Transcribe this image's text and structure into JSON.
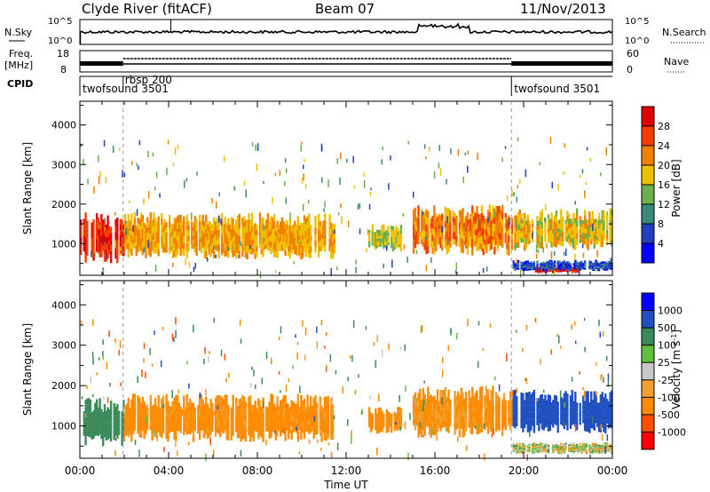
{
  "header": {
    "station": "Clyde River (fitACF)",
    "beam": "Beam 07",
    "date": "11/Nov/2013"
  },
  "top_panels": {
    "nsky_label": "N.Sky",
    "nsky_ticks": [
      "10^5",
      "10^0"
    ],
    "nsearch_label": "N.Search",
    "nsearch_ticks": [
      "10^5",
      "10^0"
    ],
    "freq_label_1": "Freq.",
    "freq_label_2": "[MHz]",
    "freq_ticks": [
      "18",
      "8"
    ],
    "nave_label": "Nave",
    "nave_ticks": [
      "60",
      "0"
    ],
    "cpid_label": "CPID",
    "cpid_segments": [
      {
        "name": "twofsound 3501",
        "start_h": 0,
        "end_h": 1.95
      },
      {
        "name": "rbsp 200",
        "start_h": 1.95,
        "end_h": 19.45
      },
      {
        "name": "twofsound 3501",
        "start_h": 19.45,
        "end_h": 24
      }
    ]
  },
  "x_axis": {
    "label": "Time UT",
    "ticks": [
      "00:00",
      "04:00",
      "08:00",
      "12:00",
      "16:00",
      "20:00",
      "00:00"
    ]
  },
  "chart_data": [
    {
      "type": "heatmap",
      "quantity": "Power",
      "ylabel": "Slant Range [km]",
      "yticks": [
        1000,
        2000,
        3000,
        4000
      ],
      "ylim": [
        200,
        4600
      ],
      "xlim_hours": [
        0,
        24
      ],
      "colorbar_label": "Power [dB]",
      "colorbar_ticks": [
        "28",
        "24",
        "20",
        "16",
        "12",
        "8",
        "4"
      ],
      "colorbar_colors": [
        "#0000ff",
        "#2040c0",
        "#3a8a7a",
        "#6ab04c",
        "#f0c000",
        "#f08000",
        "#f04000",
        "#e00000"
      ],
      "features": [
        {
          "t0": 0,
          "t1": 2,
          "r0": 500,
          "r1": 1800,
          "level": 28
        },
        {
          "t0": 2,
          "t1": 11.5,
          "r0": 600,
          "r1": 1800,
          "level": 20
        },
        {
          "t0": 13,
          "t1": 14.5,
          "r0": 800,
          "r1": 1500,
          "level": 16
        },
        {
          "t0": 15,
          "t1": 19.5,
          "r0": 700,
          "r1": 2000,
          "level": 22
        },
        {
          "t0": 19.5,
          "t1": 24,
          "r0": 800,
          "r1": 1900,
          "level": 18
        },
        {
          "t0": 20.5,
          "t1": 22.5,
          "r0": 250,
          "r1": 450,
          "level": 30
        },
        {
          "t0": 19.5,
          "t1": 24,
          "r0": 300,
          "r1": 600,
          "level": 6
        }
      ]
    },
    {
      "type": "heatmap",
      "quantity": "Velocity",
      "ylabel": "Slant Range [km]",
      "yticks": [
        1000,
        2000,
        3000,
        4000
      ],
      "ylim": [
        200,
        4600
      ],
      "xlim_hours": [
        0,
        24
      ],
      "colorbar_label": "Velocity [m s^-1]",
      "colorbar_ticks": [
        "1000",
        "500",
        "100",
        "25",
        "-25",
        "-100",
        "-500",
        "-1000"
      ],
      "colorbar_colors": [
        "#ff0000",
        "#ff5000",
        "#ff8c00",
        "#f0a030",
        "#c8c8c8",
        "#60c040",
        "#3a8a5a",
        "#2050c0",
        "#0000ff"
      ],
      "features": [
        {
          "t0": 0,
          "t1": 2,
          "r0": 500,
          "r1": 1700,
          "velocity": 300
        },
        {
          "t0": 2,
          "t1": 11.5,
          "r0": 600,
          "r1": 1800,
          "velocity": -200
        },
        {
          "t0": 13,
          "t1": 14.5,
          "r0": 800,
          "r1": 1500,
          "velocity": -300
        },
        {
          "t0": 15,
          "t1": 19.5,
          "r0": 700,
          "r1": 2000,
          "velocity": -150
        },
        {
          "t0": 19.5,
          "t1": 24,
          "r0": 800,
          "r1": 1900,
          "velocity": 800
        },
        {
          "t0": 19.5,
          "t1": 24,
          "r0": 300,
          "r1": 600,
          "velocity": 0
        }
      ]
    }
  ]
}
